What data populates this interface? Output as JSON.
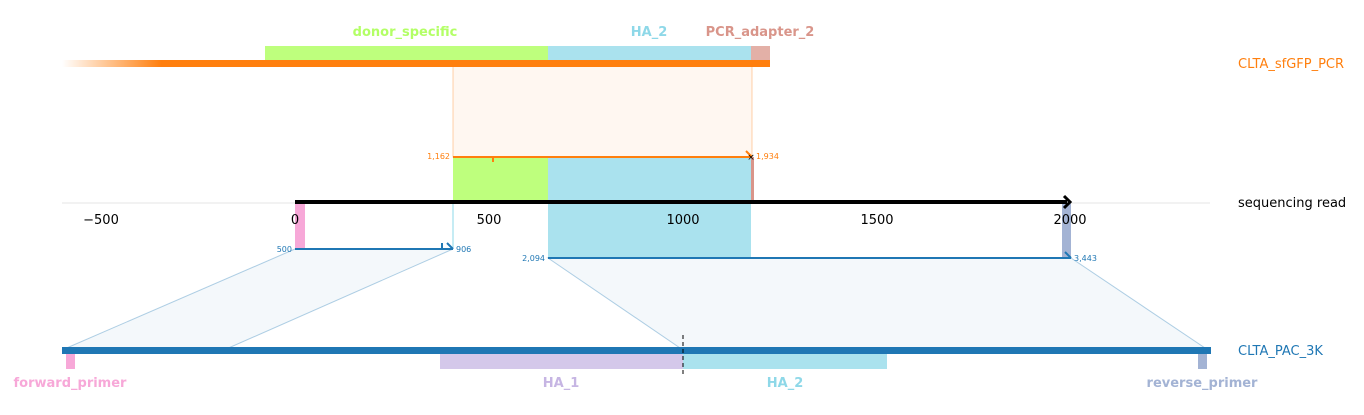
{
  "colors": {
    "orange": "#ff7f0e",
    "blue": "#1f77b4",
    "black": "#000000",
    "green": "#b3ff66",
    "cyan": "#8ed8e8",
    "adapter": "#d9958a",
    "pink": "#f7a8d8",
    "lavender": "#c6b5e3",
    "grayblue": "#a3b3d4"
  },
  "top": {
    "name": "CLTA_sfGFP_PCR",
    "features": [
      {
        "label": "donor_specific",
        "color": "#b3ff66"
      },
      {
        "label": "HA_2",
        "color": "#8ed8e8"
      },
      {
        "label": "PCR_adapter_2",
        "color": "#d9958a"
      }
    ],
    "match": {
      "start": "1,162",
      "end": "1,934"
    }
  },
  "read": {
    "name": "sequencing read",
    "axis": {
      "ticks": [
        "−500",
        "0",
        "500",
        "1000",
        "1500",
        "2000"
      ]
    }
  },
  "bottom": {
    "name": "CLTA_PAC_3K",
    "features": [
      {
        "label": "forward_primer",
        "color": "#f7a8d8"
      },
      {
        "label": "HA_1",
        "color": "#c6b5e3"
      },
      {
        "label": "HA_2",
        "color": "#8ed8e8"
      },
      {
        "label": "reverse_primer",
        "color": "#a3b3d4"
      }
    ],
    "match1": {
      "start": "500",
      "end": "906"
    },
    "match2": {
      "start": "2,094",
      "end": "3,443"
    }
  }
}
